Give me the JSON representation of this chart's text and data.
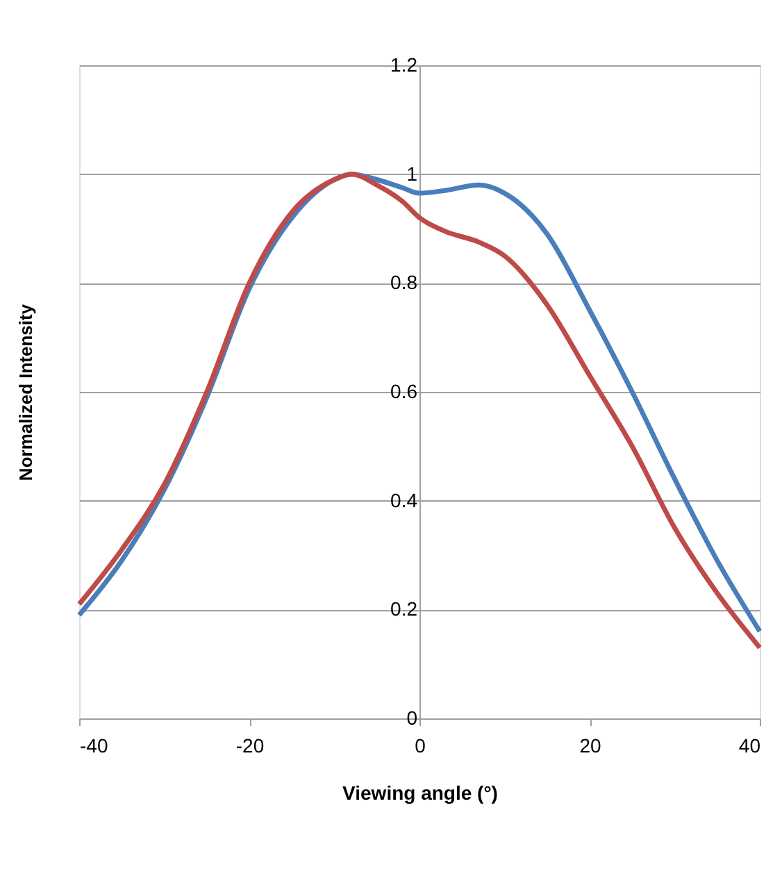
{
  "chart_data": {
    "type": "line",
    "xlabel": "Viewing angle (°)",
    "ylabel": "Normalized Intensity",
    "xlim": [
      -40,
      40
    ],
    "xticks": [
      -40,
      -20,
      0,
      20,
      40
    ],
    "ylim": [
      0,
      1.2
    ],
    "yticks": [
      0,
      0.2,
      0.4,
      0.6,
      0.8,
      1,
      1.2
    ],
    "grid": "y",
    "legend": false,
    "marker": "none",
    "line_style": "solid",
    "x": [
      -40,
      -35,
      -30,
      -25,
      -20,
      -15,
      -10,
      -8,
      -5,
      -2,
      0,
      3,
      7,
      10,
      15,
      20,
      25,
      30,
      35,
      40
    ],
    "series": [
      {
        "color": "#4a7ebb",
        "values": [
          0.19,
          0.29,
          0.42,
          0.59,
          0.79,
          0.92,
          0.99,
          1.0,
          0.99,
          0.975,
          0.965,
          0.97,
          0.98,
          0.965,
          0.89,
          0.75,
          0.6,
          0.44,
          0.29,
          0.16
        ]
      },
      {
        "color": "#be4b48",
        "values": [
          0.21,
          0.31,
          0.43,
          0.6,
          0.8,
          0.93,
          0.99,
          1.0,
          0.98,
          0.95,
          0.92,
          0.895,
          0.875,
          0.85,
          0.76,
          0.63,
          0.5,
          0.35,
          0.23,
          0.13
        ]
      }
    ]
  }
}
